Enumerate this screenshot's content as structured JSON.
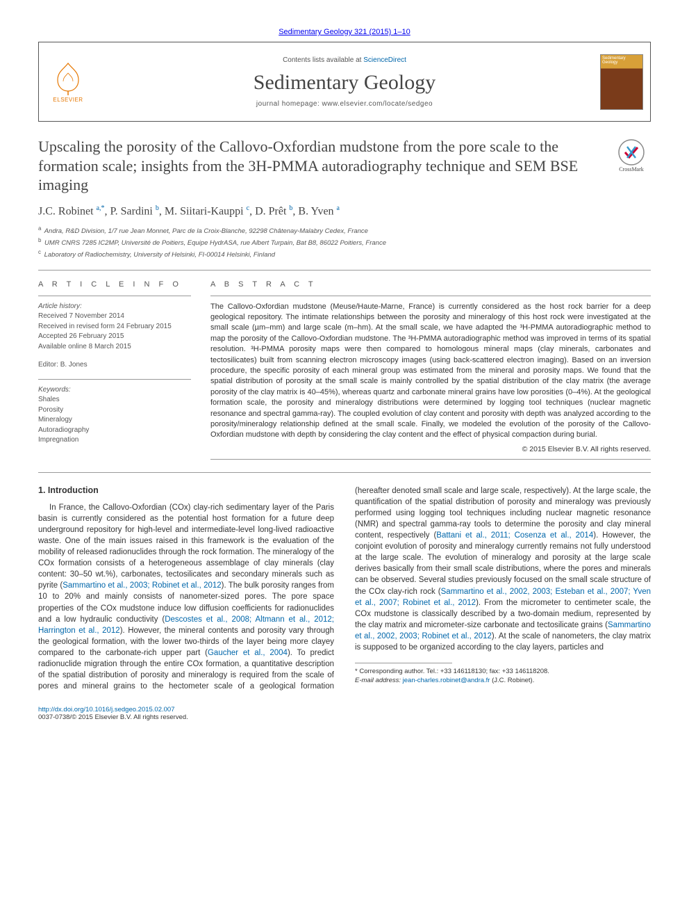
{
  "journal_ref": "Sedimentary Geology 321 (2015) 1–10",
  "header": {
    "contents_prefix": "Contents lists available at ",
    "contents_link": "ScienceDirect",
    "journal_title": "Sedimentary Geology",
    "homepage_prefix": "journal homepage: ",
    "homepage_url": "www.elsevier.com/locate/sedgeo",
    "publisher_name": "ELSEVIER",
    "cover_label": "Sedimentary Geology"
  },
  "crossmark_label": "CrossMark",
  "title": "Upscaling the porosity of the Callovo-Oxfordian mudstone from the pore scale to the formation scale; insights from the 3H-PMMA autoradiography technique and SEM BSE imaging",
  "authors_html": "J.C. Robinet <sup>a,*</sup>, P. Sardini <sup>b</sup>, M. Siitari-Kauppi <sup>c</sup>, D. Prêt <sup>b</sup>, B. Yven <sup>a</sup>",
  "affiliations": [
    {
      "sup": "a",
      "text": "Andra, R&D Division, 1/7 rue Jean Monnet, Parc de la Croix-Blanche, 92298 Châtenay-Malabry Cedex, France"
    },
    {
      "sup": "b",
      "text": "UMR CNRS 7285 IC2MP, Université de Poitiers, Equipe HydrASA, rue Albert Turpain, Bat B8, 86022 Poitiers, France"
    },
    {
      "sup": "c",
      "text": "Laboratory of Radiochemistry, University of Helsinki, FI-00014 Helsinki, Finland"
    }
  ],
  "info": {
    "heading": "A R T I C L E   I N F O",
    "history_label": "Article history:",
    "history": [
      "Received 7 November 2014",
      "Received in revised form 24 February 2015",
      "Accepted 26 February 2015",
      "Available online 8 March 2015"
    ],
    "editor_label": "Editor: ",
    "editor": "B. Jones",
    "keywords_label": "Keywords:",
    "keywords": [
      "Shales",
      "Porosity",
      "Mineralogy",
      "Autoradiography",
      "Impregnation"
    ]
  },
  "abstract": {
    "heading": "A B S T R A C T",
    "text": "The Callovo-Oxfordian mudstone (Meuse/Haute-Marne, France) is currently considered as the host rock barrier for a deep geological repository. The intimate relationships between the porosity and mineralogy of this host rock were investigated at the small scale (µm–mm) and large scale (m–hm). At the small scale, we have adapted the ³H-PMMA autoradiographic method to map the porosity of the Callovo-Oxfordian mudstone. The ³H-PMMA autoradiographic method was improved in terms of its spatial resolution. ³H-PMMA porosity maps were then compared to homologous mineral maps (clay minerals, carbonates and tectosilicates) built from scanning electron microscopy images (using back-scattered electron imaging). Based on an inversion procedure, the specific porosity of each mineral group was estimated from the mineral and porosity maps. We found that the spatial distribution of porosity at the small scale is mainly controlled by the spatial distribution of the clay matrix (the average porosity of the clay matrix is 40–45%), whereas quartz and carbonate mineral grains have low porosities (0–4%). At the geological formation scale, the porosity and mineralogy distributions were determined by logging tool techniques (nuclear magnetic resonance and spectral gamma-ray). The coupled evolution of clay content and porosity with depth was analyzed according to the porosity/mineralogy relationship defined at the small scale. Finally, we modeled the evolution of the porosity of the Callovo-Oxfordian mudstone with depth by considering the clay content and the effect of physical compaction during burial.",
    "copyright": "© 2015 Elsevier B.V. All rights reserved."
  },
  "body": {
    "section_heading": "1. Introduction",
    "paragraph": "In France, the Callovo-Oxfordian (COx) clay-rich sedimentary layer of the Paris basin is currently considered as the potential host formation for a future deep underground repository for high-level and intermediate-level long-lived radioactive waste. One of the main issues raised in this framework is the evaluation of the mobility of released radionuclides through the rock formation. The mineralogy of the COx formation consists of a heterogeneous assemblage of clay minerals (clay content: 30–50 wt.%), carbonates, tectosilicates and secondary minerals such as pyrite (",
    "link1": "Sammartino et al., 2003; Robinet et al., 2012",
    "paragraph2": "). The bulk porosity ranges from 10 to 20% and mainly consists of nanometer-sized pores. The pore space properties of the COx mudstone induce low diffusion coefficients for radionuclides and a low hydraulic conductivity (",
    "link2": "Descostes et al., 2008; Altmann et al., 2012; Harrington et al., 2012",
    "paragraph3": "). However, the mineral contents and porosity vary through the geological formation, with the lower two-thirds of the layer being more clayey compared to the carbonate-rich upper part (",
    "link3": "Gaucher et al., 2004",
    "paragraph4": "). To predict radionuclide migration through the entire COx formation, a quantitative description of the spatial distribution of porosity and mineralogy is required from the scale of pores and mineral grains to the hectometer scale of a geological formation (hereafter denoted small scale and large scale, respectively). At the large scale, the quantification of the spatial distribution of porosity and mineralogy was previously performed using logging tool techniques including nuclear magnetic resonance (NMR) and spectral gamma-ray tools to determine the porosity and clay mineral content, respectively (",
    "link4": "Battani et al., 2011; Cosenza et al., 2014",
    "paragraph5": "). However, the conjoint evolution of porosity and mineralogy currently remains not fully understood at the large scale. The evolution of mineralogy and porosity at the large scale derives basically from their small scale distributions, where the pores and minerals can be observed. Several studies previously focused on the small scale structure of the COx clay-rich rock (",
    "link5": "Sammartino et al., 2002, 2003; Esteban et al., 2007; Yven et al., 2007; Robinet et al., 2012",
    "paragraph6": "). From the micrometer to centimeter scale, the COx mudstone is classically described by a two-domain medium, represented by the clay matrix and micrometer-size carbonate and tectosilicate grains (",
    "link6": "Sammartino et al., 2002, 2003; Robinet et al., 2012",
    "paragraph7": "). At the scale of nanometers, the clay matrix is supposed to be organized according to the clay layers, particles and"
  },
  "footnote": {
    "corr": "* Corresponding author. Tel.: +33 146118130; fax: +33 146118208.",
    "email_label": "E-mail address: ",
    "email": "jean-charles.robinet@andra.fr",
    "email_suffix": " (J.C. Robinet)."
  },
  "footer": {
    "doi": "http://dx.doi.org/10.1016/j.sedgeo.2015.02.007",
    "issn_line": "0037-0738/© 2015 Elsevier B.V. All rights reserved."
  },
  "colors": {
    "link": "#0066aa",
    "text": "#333333",
    "muted": "#555555",
    "rule": "#999999",
    "elsevier": "#e67700"
  }
}
